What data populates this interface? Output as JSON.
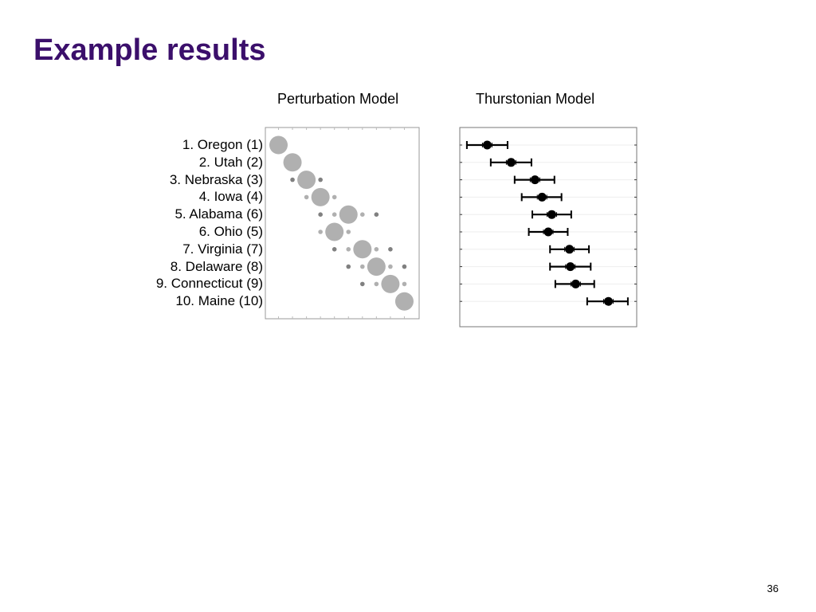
{
  "slide": {
    "title": "Example results",
    "page_number": "36"
  },
  "chart_data": [
    {
      "type": "scatter",
      "title": "Perturbation Model",
      "row_labels": [
        "1. Oregon  (1)",
        "2. Utah  (2)",
        "3. Nebraska  (3)",
        "4. Iowa  (4)",
        "5. Alabama  (6)",
        "6. Ohio  (5)",
        "7. Virginia  (7)",
        "8. Delaware  (8)",
        "9. Connecticut  (9)",
        "10. Maine (10)"
      ],
      "columns": 10,
      "points": [
        {
          "row": 1,
          "col": 1,
          "size": "large",
          "color": "#b0b0b0"
        },
        {
          "row": 2,
          "col": 2,
          "size": "large",
          "color": "#b0b0b0"
        },
        {
          "row": 3,
          "col": 2,
          "size": "small",
          "color": "#808080"
        },
        {
          "row": 3,
          "col": 3,
          "size": "large",
          "color": "#b0b0b0"
        },
        {
          "row": 3,
          "col": 4,
          "size": "small",
          "color": "#808080"
        },
        {
          "row": 4,
          "col": 3,
          "size": "small",
          "color": "#b0b0b0"
        },
        {
          "row": 4,
          "col": 4,
          "size": "large",
          "color": "#b0b0b0"
        },
        {
          "row": 4,
          "col": 5,
          "size": "small",
          "color": "#b0b0b0"
        },
        {
          "row": 5,
          "col": 4,
          "size": "small",
          "color": "#808080"
        },
        {
          "row": 5,
          "col": 5,
          "size": "small",
          "color": "#b0b0b0"
        },
        {
          "row": 5,
          "col": 6,
          "size": "large",
          "color": "#b0b0b0"
        },
        {
          "row": 5,
          "col": 7,
          "size": "small",
          "color": "#b0b0b0"
        },
        {
          "row": 5,
          "col": 8,
          "size": "small",
          "color": "#808080"
        },
        {
          "row": 6,
          "col": 4,
          "size": "small",
          "color": "#b0b0b0"
        },
        {
          "row": 6,
          "col": 5,
          "size": "large",
          "color": "#b0b0b0"
        },
        {
          "row": 6,
          "col": 6,
          "size": "small",
          "color": "#b0b0b0"
        },
        {
          "row": 7,
          "col": 5,
          "size": "small",
          "color": "#808080"
        },
        {
          "row": 7,
          "col": 6,
          "size": "small",
          "color": "#b0b0b0"
        },
        {
          "row": 7,
          "col": 7,
          "size": "large",
          "color": "#b0b0b0"
        },
        {
          "row": 7,
          "col": 8,
          "size": "small",
          "color": "#b0b0b0"
        },
        {
          "row": 7,
          "col": 9,
          "size": "small",
          "color": "#808080"
        },
        {
          "row": 8,
          "col": 6,
          "size": "small",
          "color": "#808080"
        },
        {
          "row": 8,
          "col": 7,
          "size": "small",
          "color": "#b0b0b0"
        },
        {
          "row": 8,
          "col": 8,
          "size": "large",
          "color": "#b0b0b0"
        },
        {
          "row": 8,
          "col": 9,
          "size": "small",
          "color": "#b0b0b0"
        },
        {
          "row": 8,
          "col": 10,
          "size": "small",
          "color": "#808080"
        },
        {
          "row": 9,
          "col": 7,
          "size": "small",
          "color": "#808080"
        },
        {
          "row": 9,
          "col": 8,
          "size": "small",
          "color": "#b0b0b0"
        },
        {
          "row": 9,
          "col": 9,
          "size": "large",
          "color": "#b0b0b0"
        },
        {
          "row": 9,
          "col": 10,
          "size": "small",
          "color": "#b0b0b0"
        },
        {
          "row": 10,
          "col": 10,
          "size": "large",
          "color": "#b0b0b0"
        }
      ]
    },
    {
      "type": "scatter",
      "title": "Thurstonian Model",
      "error_bars": true,
      "xlim": [
        0,
        1
      ],
      "rows": [
        {
          "row": 1,
          "mean": 0.155,
          "low": 0.04,
          "high": 0.27
        },
        {
          "row": 2,
          "mean": 0.29,
          "low": 0.175,
          "high": 0.405
        },
        {
          "row": 3,
          "mean": 0.425,
          "low": 0.31,
          "high": 0.535
        },
        {
          "row": 4,
          "mean": 0.465,
          "low": 0.35,
          "high": 0.575
        },
        {
          "row": 5,
          "mean": 0.52,
          "low": 0.41,
          "high": 0.63
        },
        {
          "row": 6,
          "mean": 0.5,
          "low": 0.39,
          "high": 0.61
        },
        {
          "row": 7,
          "mean": 0.62,
          "low": 0.51,
          "high": 0.73
        },
        {
          "row": 8,
          "mean": 0.625,
          "low": 0.51,
          "high": 0.74
        },
        {
          "row": 9,
          "mean": 0.655,
          "low": 0.54,
          "high": 0.76
        },
        {
          "row": 10,
          "mean": 0.84,
          "low": 0.72,
          "high": 0.95
        }
      ]
    }
  ]
}
